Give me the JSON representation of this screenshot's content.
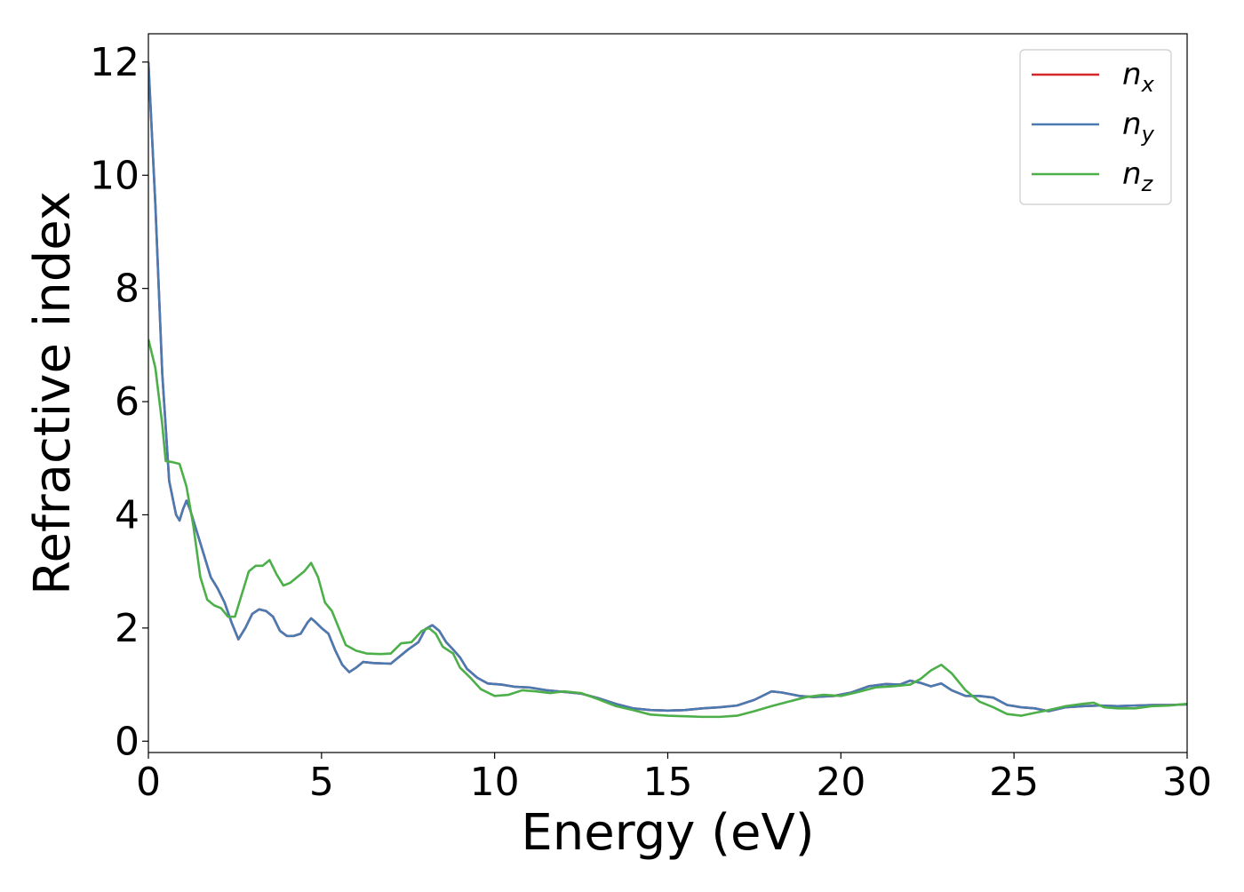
{
  "chart_data": {
    "type": "line",
    "title": "",
    "xlabel": "Energy (eV)",
    "ylabel": "Refractive index",
    "xlim": [
      0,
      30
    ],
    "ylim": [
      -0.2,
      12.5
    ],
    "x_ticks": [
      0,
      5,
      10,
      15,
      20,
      25,
      30
    ],
    "y_ticks": [
      0,
      2,
      4,
      6,
      8,
      10,
      12
    ],
    "grid": false,
    "legend_position": "top-right",
    "series": [
      {
        "name": "n",
        "subscript": "x",
        "color": "#d62728",
        "points": [
          [
            0,
            12.0
          ],
          [
            0.2,
            9.5
          ],
          [
            0.4,
            6.5
          ],
          [
            0.6,
            4.6
          ],
          [
            0.8,
            4.0
          ],
          [
            0.9,
            3.9
          ],
          [
            1.0,
            4.1
          ],
          [
            1.1,
            4.25
          ],
          [
            1.2,
            4.1
          ],
          [
            1.4,
            3.7
          ],
          [
            1.6,
            3.3
          ],
          [
            1.8,
            2.9
          ],
          [
            2.0,
            2.7
          ],
          [
            2.2,
            2.45
          ],
          [
            2.4,
            2.1
          ],
          [
            2.6,
            1.8
          ],
          [
            2.8,
            2.0
          ],
          [
            3.0,
            2.25
          ],
          [
            3.2,
            2.33
          ],
          [
            3.4,
            2.3
          ],
          [
            3.6,
            2.2
          ],
          [
            3.8,
            1.95
          ],
          [
            4.0,
            1.86
          ],
          [
            4.2,
            1.86
          ],
          [
            4.4,
            1.9
          ],
          [
            4.6,
            2.1
          ],
          [
            4.7,
            2.17
          ],
          [
            4.8,
            2.12
          ],
          [
            5.0,
            2.0
          ],
          [
            5.2,
            1.9
          ],
          [
            5.4,
            1.6
          ],
          [
            5.6,
            1.35
          ],
          [
            5.8,
            1.22
          ],
          [
            6.0,
            1.3
          ],
          [
            6.2,
            1.4
          ],
          [
            6.5,
            1.38
          ],
          [
            7.0,
            1.37
          ],
          [
            7.5,
            1.62
          ],
          [
            7.8,
            1.75
          ],
          [
            8.0,
            1.98
          ],
          [
            8.2,
            2.05
          ],
          [
            8.4,
            1.95
          ],
          [
            8.6,
            1.75
          ],
          [
            8.8,
            1.62
          ],
          [
            9.0,
            1.48
          ],
          [
            9.2,
            1.28
          ],
          [
            9.5,
            1.12
          ],
          [
            9.8,
            1.02
          ],
          [
            10.2,
            1.0
          ],
          [
            10.6,
            0.96
          ],
          [
            11.0,
            0.95
          ],
          [
            11.5,
            0.9
          ],
          [
            12.0,
            0.87
          ],
          [
            12.5,
            0.84
          ],
          [
            13.0,
            0.76
          ],
          [
            13.5,
            0.66
          ],
          [
            14.0,
            0.58
          ],
          [
            14.5,
            0.55
          ],
          [
            15.0,
            0.54
          ],
          [
            15.5,
            0.55
          ],
          [
            16.0,
            0.58
          ],
          [
            16.5,
            0.6
          ],
          [
            17.0,
            0.63
          ],
          [
            17.5,
            0.73
          ],
          [
            18.0,
            0.88
          ],
          [
            18.3,
            0.86
          ],
          [
            18.8,
            0.8
          ],
          [
            19.2,
            0.78
          ],
          [
            19.8,
            0.8
          ],
          [
            20.3,
            0.86
          ],
          [
            20.8,
            0.97
          ],
          [
            21.3,
            1.01
          ],
          [
            21.7,
            1.0
          ],
          [
            22.0,
            1.07
          ],
          [
            22.3,
            1.03
          ],
          [
            22.6,
            0.97
          ],
          [
            22.9,
            1.02
          ],
          [
            23.2,
            0.9
          ],
          [
            23.6,
            0.8
          ],
          [
            24.0,
            0.8
          ],
          [
            24.4,
            0.77
          ],
          [
            24.8,
            0.64
          ],
          [
            25.2,
            0.6
          ],
          [
            25.6,
            0.58
          ],
          [
            26.0,
            0.53
          ],
          [
            26.5,
            0.6
          ],
          [
            27.0,
            0.62
          ],
          [
            27.5,
            0.63
          ],
          [
            28.0,
            0.62
          ],
          [
            28.5,
            0.63
          ],
          [
            29.0,
            0.64
          ],
          [
            29.5,
            0.64
          ],
          [
            30.0,
            0.65
          ]
        ]
      },
      {
        "name": "n",
        "subscript": "y",
        "color": "#4a7ab2",
        "points": [
          [
            0,
            12.0
          ],
          [
            0.2,
            9.5
          ],
          [
            0.4,
            6.5
          ],
          [
            0.6,
            4.6
          ],
          [
            0.8,
            4.0
          ],
          [
            0.9,
            3.9
          ],
          [
            1.0,
            4.1
          ],
          [
            1.1,
            4.25
          ],
          [
            1.2,
            4.1
          ],
          [
            1.4,
            3.7
          ],
          [
            1.6,
            3.3
          ],
          [
            1.8,
            2.9
          ],
          [
            2.0,
            2.7
          ],
          [
            2.2,
            2.45
          ],
          [
            2.4,
            2.1
          ],
          [
            2.6,
            1.8
          ],
          [
            2.8,
            2.0
          ],
          [
            3.0,
            2.25
          ],
          [
            3.2,
            2.33
          ],
          [
            3.4,
            2.3
          ],
          [
            3.6,
            2.2
          ],
          [
            3.8,
            1.95
          ],
          [
            4.0,
            1.86
          ],
          [
            4.2,
            1.86
          ],
          [
            4.4,
            1.9
          ],
          [
            4.6,
            2.1
          ],
          [
            4.7,
            2.17
          ],
          [
            4.8,
            2.12
          ],
          [
            5.0,
            2.0
          ],
          [
            5.2,
            1.9
          ],
          [
            5.4,
            1.6
          ],
          [
            5.6,
            1.35
          ],
          [
            5.8,
            1.22
          ],
          [
            6.0,
            1.3
          ],
          [
            6.2,
            1.4
          ],
          [
            6.5,
            1.38
          ],
          [
            7.0,
            1.37
          ],
          [
            7.5,
            1.62
          ],
          [
            7.8,
            1.75
          ],
          [
            8.0,
            1.98
          ],
          [
            8.2,
            2.05
          ],
          [
            8.4,
            1.95
          ],
          [
            8.6,
            1.75
          ],
          [
            8.8,
            1.62
          ],
          [
            9.0,
            1.48
          ],
          [
            9.2,
            1.28
          ],
          [
            9.5,
            1.12
          ],
          [
            9.8,
            1.02
          ],
          [
            10.2,
            1.0
          ],
          [
            10.6,
            0.96
          ],
          [
            11.0,
            0.95
          ],
          [
            11.5,
            0.9
          ],
          [
            12.0,
            0.87
          ],
          [
            12.5,
            0.84
          ],
          [
            13.0,
            0.76
          ],
          [
            13.5,
            0.66
          ],
          [
            14.0,
            0.58
          ],
          [
            14.5,
            0.55
          ],
          [
            15.0,
            0.54
          ],
          [
            15.5,
            0.55
          ],
          [
            16.0,
            0.58
          ],
          [
            16.5,
            0.6
          ],
          [
            17.0,
            0.63
          ],
          [
            17.5,
            0.73
          ],
          [
            18.0,
            0.88
          ],
          [
            18.3,
            0.86
          ],
          [
            18.8,
            0.8
          ],
          [
            19.2,
            0.78
          ],
          [
            19.8,
            0.8
          ],
          [
            20.3,
            0.86
          ],
          [
            20.8,
            0.97
          ],
          [
            21.3,
            1.01
          ],
          [
            21.7,
            1.0
          ],
          [
            22.0,
            1.07
          ],
          [
            22.3,
            1.03
          ],
          [
            22.6,
            0.97
          ],
          [
            22.9,
            1.02
          ],
          [
            23.2,
            0.9
          ],
          [
            23.6,
            0.8
          ],
          [
            24.0,
            0.8
          ],
          [
            24.4,
            0.77
          ],
          [
            24.8,
            0.64
          ],
          [
            25.2,
            0.6
          ],
          [
            25.6,
            0.58
          ],
          [
            26.0,
            0.53
          ],
          [
            26.5,
            0.6
          ],
          [
            27.0,
            0.62
          ],
          [
            27.5,
            0.63
          ],
          [
            28.0,
            0.62
          ],
          [
            28.5,
            0.63
          ],
          [
            29.0,
            0.64
          ],
          [
            29.5,
            0.64
          ],
          [
            30.0,
            0.65
          ]
        ]
      },
      {
        "name": "n",
        "subscript": "z",
        "color": "#4daf4a",
        "points": [
          [
            0,
            7.1
          ],
          [
            0.2,
            6.6
          ],
          [
            0.4,
            5.6
          ],
          [
            0.5,
            4.95
          ],
          [
            0.7,
            4.93
          ],
          [
            0.9,
            4.9
          ],
          [
            1.1,
            4.5
          ],
          [
            1.3,
            3.8
          ],
          [
            1.5,
            2.9
          ],
          [
            1.7,
            2.5
          ],
          [
            1.9,
            2.4
          ],
          [
            2.1,
            2.35
          ],
          [
            2.3,
            2.2
          ],
          [
            2.5,
            2.2
          ],
          [
            2.7,
            2.6
          ],
          [
            2.9,
            3.0
          ],
          [
            3.1,
            3.1
          ],
          [
            3.3,
            3.1
          ],
          [
            3.5,
            3.2
          ],
          [
            3.7,
            2.95
          ],
          [
            3.9,
            2.75
          ],
          [
            4.1,
            2.8
          ],
          [
            4.3,
            2.9
          ],
          [
            4.5,
            3.0
          ],
          [
            4.7,
            3.15
          ],
          [
            4.9,
            2.9
          ],
          [
            5.1,
            2.45
          ],
          [
            5.3,
            2.3
          ],
          [
            5.5,
            2.0
          ],
          [
            5.7,
            1.7
          ],
          [
            6.0,
            1.6
          ],
          [
            6.3,
            1.55
          ],
          [
            6.7,
            1.54
          ],
          [
            7.0,
            1.55
          ],
          [
            7.3,
            1.73
          ],
          [
            7.6,
            1.75
          ],
          [
            7.9,
            1.95
          ],
          [
            8.1,
            2.0
          ],
          [
            8.3,
            1.9
          ],
          [
            8.5,
            1.67
          ],
          [
            8.8,
            1.55
          ],
          [
            9.0,
            1.3
          ],
          [
            9.3,
            1.12
          ],
          [
            9.6,
            0.92
          ],
          [
            10.0,
            0.8
          ],
          [
            10.4,
            0.82
          ],
          [
            10.8,
            0.9
          ],
          [
            11.2,
            0.88
          ],
          [
            11.6,
            0.85
          ],
          [
            12.0,
            0.88
          ],
          [
            12.5,
            0.85
          ],
          [
            13.0,
            0.74
          ],
          [
            13.5,
            0.62
          ],
          [
            14.0,
            0.55
          ],
          [
            14.5,
            0.47
          ],
          [
            15.0,
            0.45
          ],
          [
            15.5,
            0.44
          ],
          [
            16.0,
            0.43
          ],
          [
            16.5,
            0.43
          ],
          [
            17.0,
            0.45
          ],
          [
            17.5,
            0.53
          ],
          [
            18.0,
            0.62
          ],
          [
            18.5,
            0.7
          ],
          [
            19.0,
            0.78
          ],
          [
            19.5,
            0.82
          ],
          [
            20.0,
            0.8
          ],
          [
            20.5,
            0.87
          ],
          [
            21.0,
            0.95
          ],
          [
            21.5,
            0.97
          ],
          [
            22.0,
            1.0
          ],
          [
            22.3,
            1.1
          ],
          [
            22.6,
            1.25
          ],
          [
            22.9,
            1.35
          ],
          [
            23.2,
            1.2
          ],
          [
            23.6,
            0.9
          ],
          [
            24.0,
            0.7
          ],
          [
            24.4,
            0.6
          ],
          [
            24.8,
            0.48
          ],
          [
            25.2,
            0.45
          ],
          [
            25.6,
            0.5
          ],
          [
            26.0,
            0.55
          ],
          [
            26.5,
            0.62
          ],
          [
            27.0,
            0.66
          ],
          [
            27.3,
            0.68
          ],
          [
            27.6,
            0.6
          ],
          [
            28.0,
            0.58
          ],
          [
            28.5,
            0.58
          ],
          [
            29.0,
            0.62
          ],
          [
            29.5,
            0.63
          ],
          [
            30.0,
            0.66
          ]
        ]
      }
    ]
  }
}
